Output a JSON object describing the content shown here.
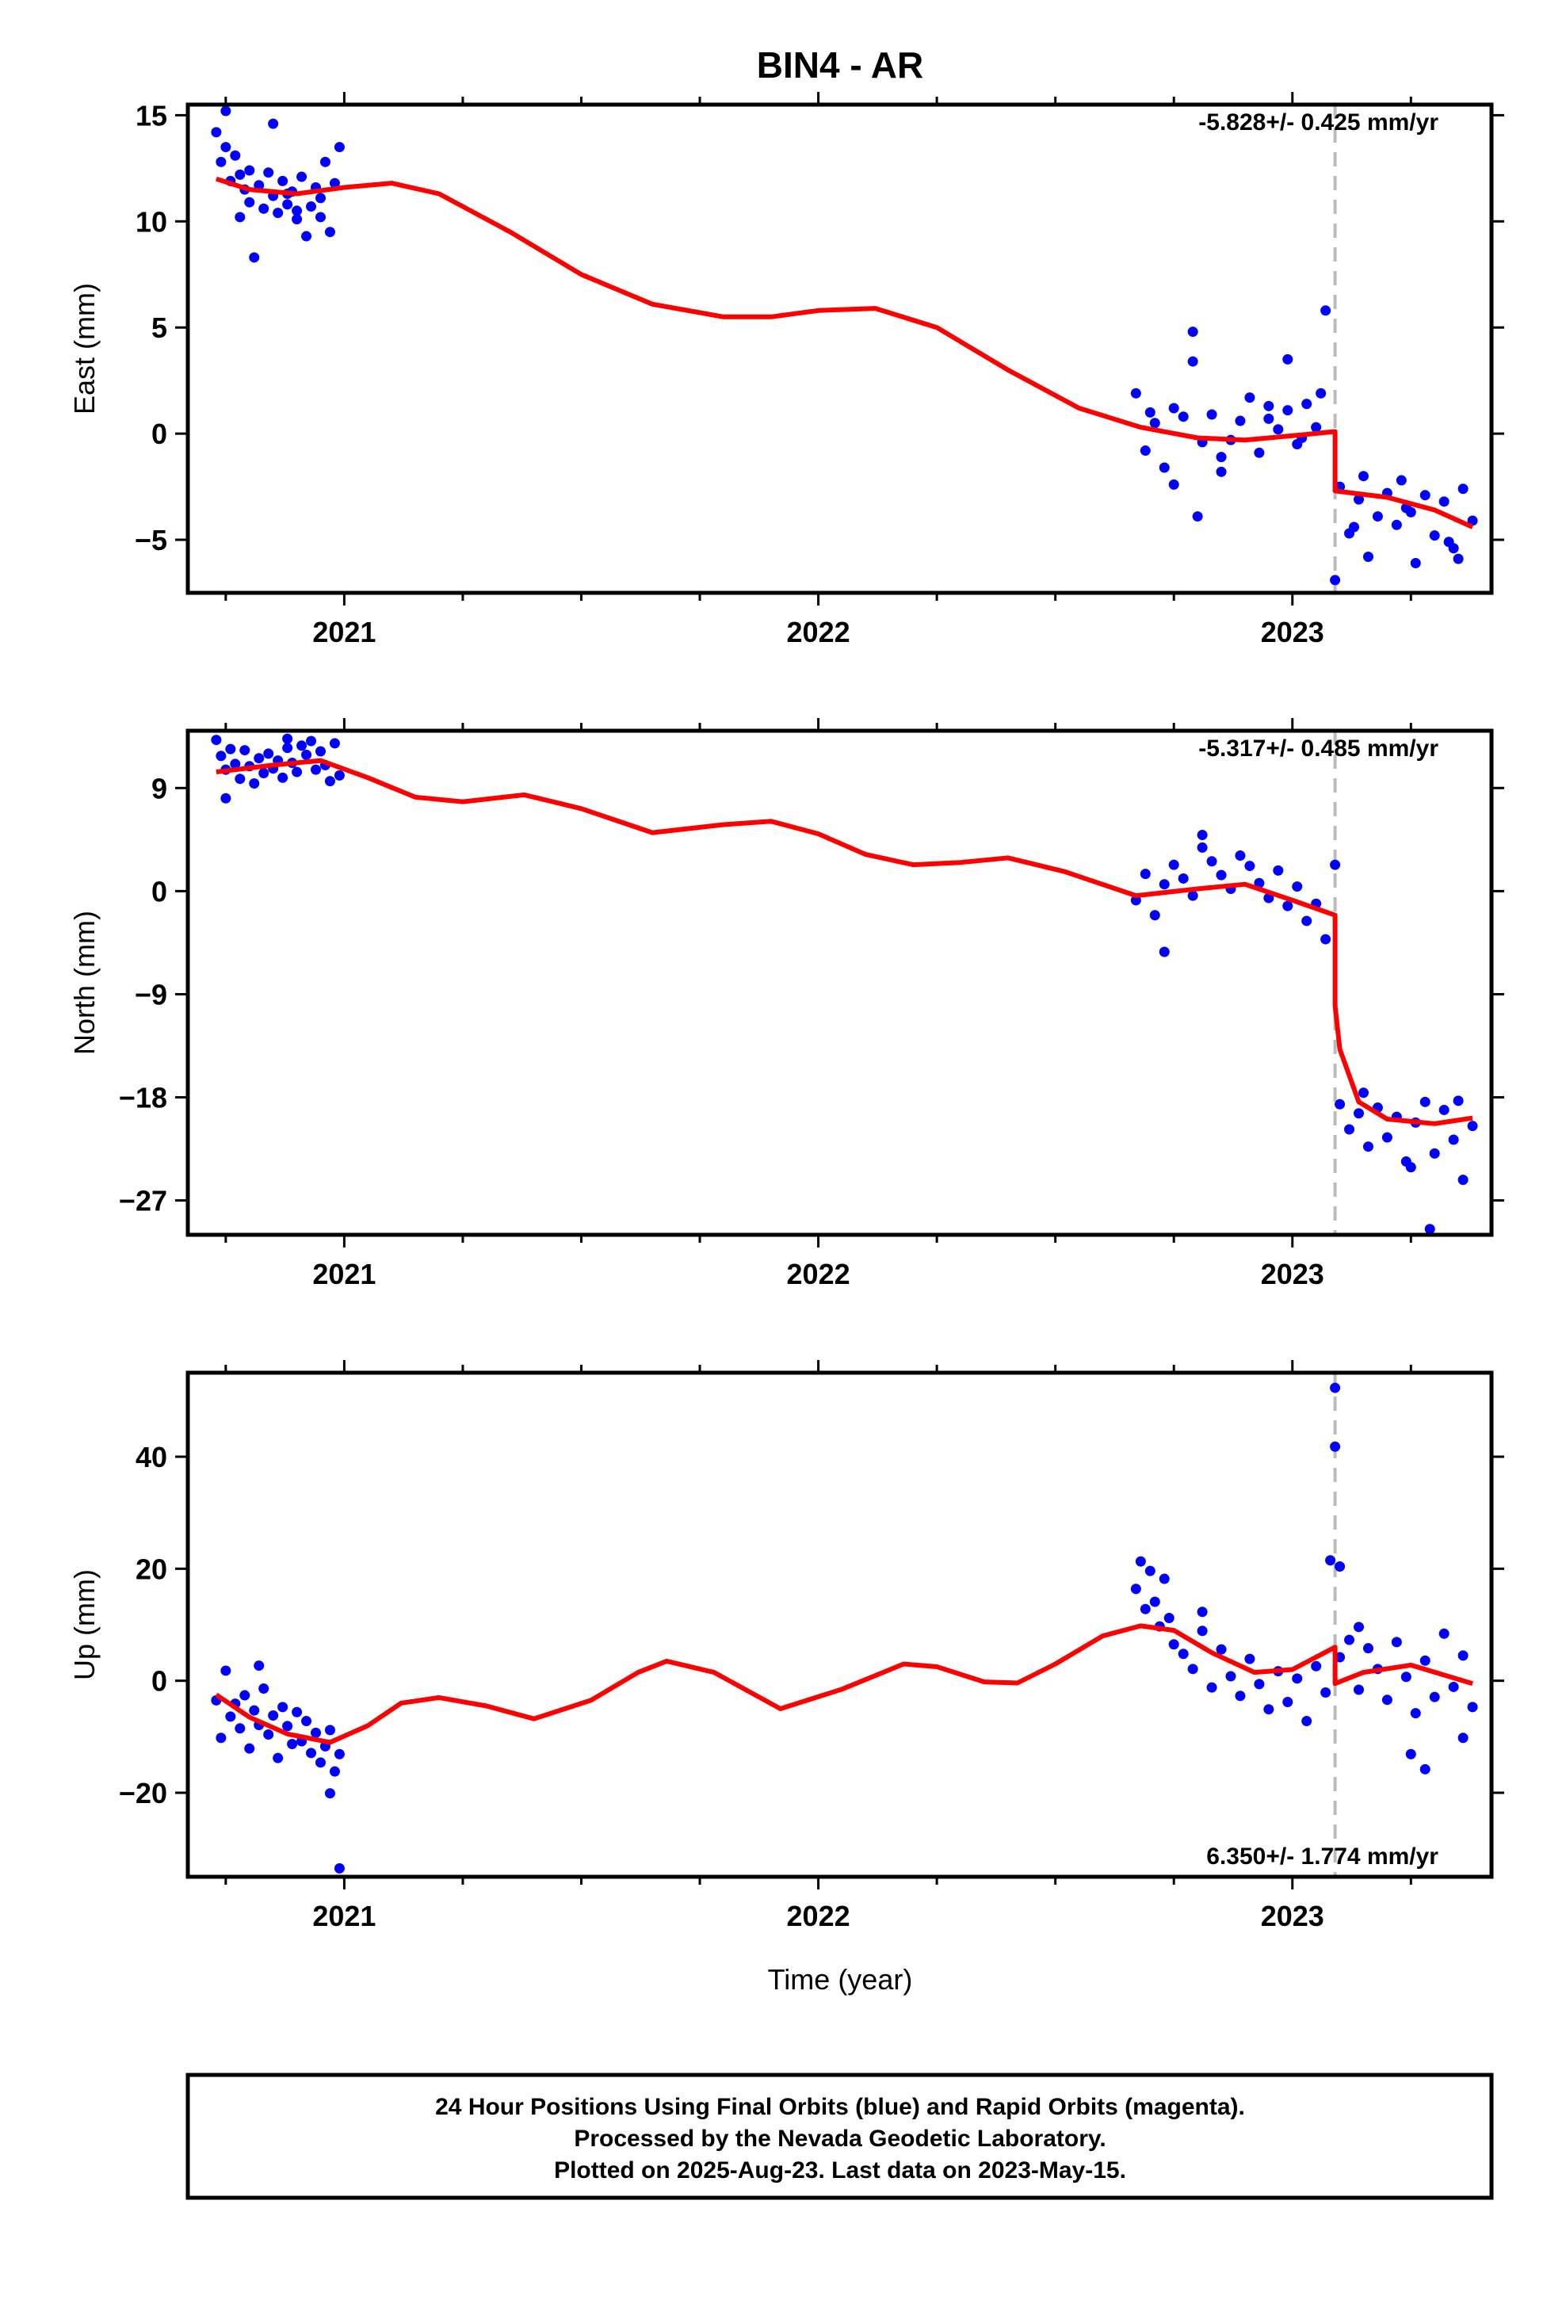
{
  "title": "BIN4 - AR",
  "xlabel": "Time (year)",
  "footer": [
    "24 Hour Positions Using Final Orbits (blue) and Rapid Orbits (magenta).",
    "Processed by the Nevada Geodetic Laboratory.",
    "Plotted on 2025-Aug-23. Last data on 2023-May-15."
  ],
  "colors": {
    "points": "#0000ff",
    "model": "#ff0000",
    "event": "#bbbbbb",
    "frame": "#000000"
  },
  "chart_data": [
    {
      "type": "scatter",
      "ylabel": "East (mm)",
      "rate": "-5.828+/- 0.425 mm/yr",
      "xlim": [
        2020.67,
        2023.42
      ],
      "ylim": [
        -7.5,
        15.5
      ],
      "xticks": [
        2021,
        2022,
        2023
      ],
      "yticks": [
        -5,
        0,
        5,
        10,
        15
      ],
      "event_x": 2023.09,
      "model": {
        "x": [
          2020.73,
          2020.8,
          2020.9,
          2021.0,
          2021.1,
          2021.2,
          2021.35,
          2021.5,
          2021.65,
          2021.8,
          2021.9,
          2022.0,
          2022.12,
          2022.25,
          2022.4,
          2022.55,
          2022.68,
          2022.8,
          2022.9,
          2023.0,
          2023.09,
          2023.09,
          2023.2,
          2023.3,
          2023.38
        ],
        "y": [
          12.0,
          11.5,
          11.3,
          11.6,
          11.8,
          11.3,
          9.5,
          7.5,
          6.1,
          5.5,
          5.5,
          5.8,
          5.9,
          5.0,
          3.0,
          1.2,
          0.3,
          -0.2,
          -0.3,
          -0.1,
          0.1,
          -2.7,
          -3.0,
          -3.6,
          -4.4
        ]
      },
      "points": {
        "x": [
          2020.73,
          2020.74,
          2020.75,
          2020.76,
          2020.77,
          2020.78,
          2020.79,
          2020.8,
          2020.81,
          2020.82,
          2020.83,
          2020.84,
          2020.85,
          2020.86,
          2020.87,
          2020.88,
          2020.89,
          2020.9,
          2020.91,
          2020.92,
          2020.93,
          2020.94,
          2020.95,
          2020.96,
          2020.97,
          2020.98,
          2020.99,
          2020.75,
          2020.8,
          2020.85,
          2020.9,
          2020.95,
          2020.78,
          2020.88,
          2022.67,
          2022.69,
          2022.71,
          2022.73,
          2022.75,
          2022.77,
          2022.79,
          2022.81,
          2022.83,
          2022.85,
          2022.87,
          2022.89,
          2022.91,
          2022.93,
          2022.95,
          2022.97,
          2022.99,
          2023.01,
          2023.03,
          2023.05,
          2023.07,
          2022.79,
          2022.8,
          2022.99,
          2023.06,
          2022.75,
          2022.85,
          2022.95,
          2022.7,
          2023.02,
          2023.1,
          2023.12,
          2023.14,
          2023.16,
          2023.18,
          2023.2,
          2023.22,
          2023.24,
          2023.26,
          2023.28,
          2023.3,
          2023.32,
          2023.34,
          2023.36,
          2023.38,
          2023.09,
          2023.15,
          2023.25,
          2023.35,
          2023.13,
          2023.23,
          2023.33
        ],
        "y": [
          14.2,
          12.8,
          13.5,
          11.9,
          13.1,
          12.2,
          11.5,
          10.9,
          8.3,
          11.7,
          10.6,
          12.3,
          11.2,
          10.4,
          11.9,
          10.8,
          11.4,
          10.1,
          12.1,
          9.3,
          10.7,
          11.6,
          10.2,
          12.8,
          9.5,
          11.8,
          13.5,
          15.2,
          12.4,
          14.6,
          10.5,
          11.1,
          10.2,
          11.3,
          1.9,
          -0.8,
          0.5,
          -1.6,
          1.2,
          0.8,
          4.8,
          -0.4,
          0.9,
          -1.1,
          -0.3,
          0.6,
          1.7,
          -0.9,
          1.3,
          0.2,
          1.1,
          -0.5,
          1.4,
          0.3,
          5.8,
          3.4,
          -3.9,
          3.5,
          1.9,
          -2.4,
          -1.8,
          0.7,
          1.0,
          -0.2,
          -2.5,
          -4.7,
          -3.1,
          -5.8,
          -3.9,
          -2.8,
          -4.3,
          -3.5,
          -6.1,
          -2.9,
          -4.8,
          -3.2,
          -5.4,
          -2.6,
          -4.1,
          -6.9,
          -2.0,
          -3.7,
          -5.9,
          -4.4,
          -2.2,
          -5.1
        ]
      }
    },
    {
      "type": "scatter",
      "ylabel": "North (mm)",
      "rate": "-5.317+/- 0.485 mm/yr",
      "xlim": [
        2020.67,
        2023.42
      ],
      "ylim": [
        -30,
        14
      ],
      "xticks": [
        2021,
        2022,
        2023
      ],
      "yticks": [
        -27,
        -18,
        -9,
        0,
        9
      ],
      "event_x": 2023.09,
      "model": {
        "x": [
          2020.73,
          2020.85,
          2020.95,
          2021.05,
          2021.15,
          2021.25,
          2021.38,
          2021.5,
          2021.65,
          2021.8,
          2021.9,
          2022.0,
          2022.1,
          2022.2,
          2022.3,
          2022.4,
          2022.52,
          2022.67,
          2022.8,
          2022.9,
          2023.0,
          2023.09,
          2023.09,
          2023.1,
          2023.14,
          2023.2,
          2023.3,
          2023.38
        ],
        "y": [
          10.4,
          11.0,
          11.4,
          9.9,
          8.2,
          7.8,
          8.4,
          7.2,
          5.1,
          5.8,
          6.1,
          5.0,
          3.2,
          2.3,
          2.5,
          2.9,
          1.7,
          -0.4,
          0.2,
          0.6,
          -0.8,
          -2.1,
          -10.0,
          -13.8,
          -18.4,
          -19.9,
          -20.3,
          -19.8
        ]
      },
      "points": {
        "x": [
          2020.73,
          2020.74,
          2020.75,
          2020.76,
          2020.77,
          2020.78,
          2020.79,
          2020.8,
          2020.81,
          2020.82,
          2020.83,
          2020.84,
          2020.85,
          2020.86,
          2020.87,
          2020.88,
          2020.89,
          2020.9,
          2020.91,
          2020.92,
          2020.93,
          2020.94,
          2020.95,
          2020.96,
          2020.97,
          2020.98,
          2020.99,
          2020.75,
          2020.88,
          2022.67,
          2022.69,
          2022.71,
          2022.73,
          2022.75,
          2022.77,
          2022.79,
          2022.81,
          2022.83,
          2022.85,
          2022.87,
          2022.89,
          2022.91,
          2022.93,
          2022.95,
          2022.97,
          2022.99,
          2023.01,
          2023.03,
          2023.05,
          2023.07,
          2023.09,
          2022.81,
          2022.73,
          2023.1,
          2023.12,
          2023.14,
          2023.16,
          2023.18,
          2023.2,
          2023.22,
          2023.24,
          2023.26,
          2023.28,
          2023.3,
          2023.32,
          2023.34,
          2023.36,
          2023.38,
          2023.15,
          2023.25,
          2023.35,
          2023.29
        ],
        "y": [
          13.2,
          11.8,
          10.6,
          12.4,
          11.1,
          9.8,
          12.3,
          10.9,
          9.4,
          11.6,
          10.3,
          12.0,
          10.7,
          11.4,
          9.9,
          12.5,
          11.2,
          10.4,
          12.7,
          11.9,
          13.1,
          10.6,
          12.2,
          11.0,
          9.6,
          12.9,
          10.1,
          8.1,
          13.3,
          -0.8,
          1.5,
          -2.1,
          0.6,
          2.3,
          1.1,
          -0.4,
          3.8,
          2.6,
          1.4,
          0.2,
          3.1,
          2.2,
          0.7,
          -0.6,
          1.8,
          -1.3,
          0.4,
          -2.6,
          -1.1,
          -4.2,
          2.3,
          4.9,
          -5.3,
          -18.6,
          -20.8,
          -19.4,
          -22.3,
          -18.9,
          -21.5,
          -19.7,
          -23.6,
          -20.2,
          -18.4,
          -22.9,
          -19.1,
          -21.7,
          -25.2,
          -20.5,
          -17.6,
          -24.1,
          -18.3,
          -29.5
        ]
      }
    },
    {
      "type": "scatter",
      "ylabel": "Up (mm)",
      "rate": "6.350+/- 1.774 mm/yr",
      "xlim": [
        2020.67,
        2023.42
      ],
      "ylim": [
        -35,
        55
      ],
      "xticks": [
        2021,
        2022,
        2023
      ],
      "yticks": [
        -20,
        0,
        20,
        40
      ],
      "event_x": 2023.09,
      "model": {
        "x": [
          2020.73,
          2020.8,
          2020.88,
          2020.97,
          2021.05,
          2021.12,
          2021.2,
          2021.3,
          2021.4,
          2021.52,
          2021.62,
          2021.68,
          2021.78,
          2021.92,
          2022.05,
          2022.18,
          2022.25,
          2022.35,
          2022.42,
          2022.5,
          2022.6,
          2022.68,
          2022.75,
          2022.83,
          2022.92,
          2023.0,
          2023.09,
          2023.09,
          2023.15,
          2023.25,
          2023.38
        ],
        "y": [
          -2.5,
          -6.5,
          -9.5,
          -11.0,
          -8.0,
          -4.0,
          -3.0,
          -4.5,
          -6.8,
          -3.5,
          1.5,
          3.5,
          1.5,
          -5.0,
          -1.5,
          3.0,
          2.5,
          -0.2,
          -0.4,
          3.0,
          8.0,
          9.8,
          9.0,
          5.0,
          1.5,
          2.0,
          6.0,
          -0.5,
          1.5,
          2.8,
          -0.5
        ]
      },
      "points": {
        "x": [
          2020.73,
          2020.74,
          2020.75,
          2020.76,
          2020.77,
          2020.78,
          2020.79,
          2020.8,
          2020.81,
          2020.82,
          2020.83,
          2020.84,
          2020.85,
          2020.86,
          2020.87,
          2020.88,
          2020.89,
          2020.9,
          2020.91,
          2020.92,
          2020.93,
          2020.94,
          2020.95,
          2020.96,
          2020.97,
          2020.98,
          2020.99,
          2020.82,
          2020.97,
          2020.99,
          2022.67,
          2022.68,
          2022.69,
          2022.7,
          2022.71,
          2022.72,
          2022.73,
          2022.75,
          2022.77,
          2022.79,
          2022.81,
          2022.83,
          2022.85,
          2022.87,
          2022.89,
          2022.91,
          2022.93,
          2022.95,
          2022.97,
          2022.99,
          2023.01,
          2023.03,
          2023.05,
          2023.07,
          2023.08,
          2023.09,
          2023.09,
          2023.1,
          2022.74,
          2022.81,
          2023.1,
          2023.12,
          2023.14,
          2023.16,
          2023.18,
          2023.2,
          2023.22,
          2023.24,
          2023.26,
          2023.28,
          2023.3,
          2023.32,
          2023.34,
          2023.36,
          2023.38,
          2023.25,
          2023.28,
          2023.36,
          2023.14
        ],
        "y": [
          -3.5,
          -10.2,
          1.8,
          -6.4,
          -4.1,
          -8.5,
          -2.6,
          -12.1,
          -5.3,
          -7.9,
          -1.4,
          -9.6,
          -6.2,
          -13.8,
          -4.7,
          -8.1,
          -11.3,
          -5.6,
          -10.8,
          -7.2,
          -12.9,
          -9.3,
          -14.6,
          -11.7,
          -8.8,
          -16.2,
          -13.1,
          2.7,
          -20.1,
          -33.5,
          16.4,
          21.3,
          12.8,
          19.6,
          14.1,
          9.7,
          18.2,
          6.5,
          4.8,
          2.1,
          8.9,
          -1.2,
          5.6,
          0.8,
          -2.7,
          3.9,
          -0.6,
          -5.1,
          1.7,
          -3.8,
          0.4,
          -7.2,
          2.6,
          -2.1,
          21.5,
          52.3,
          41.8,
          20.4,
          11.2,
          12.3,
          4.2,
          7.3,
          -1.6,
          5.8,
          2.1,
          -3.4,
          6.9,
          0.7,
          -5.8,
          3.6,
          -2.9,
          8.4,
          -1.1,
          4.5,
          -4.7,
          -13.1,
          -15.8,
          -10.2,
          9.6
        ]
      }
    }
  ]
}
